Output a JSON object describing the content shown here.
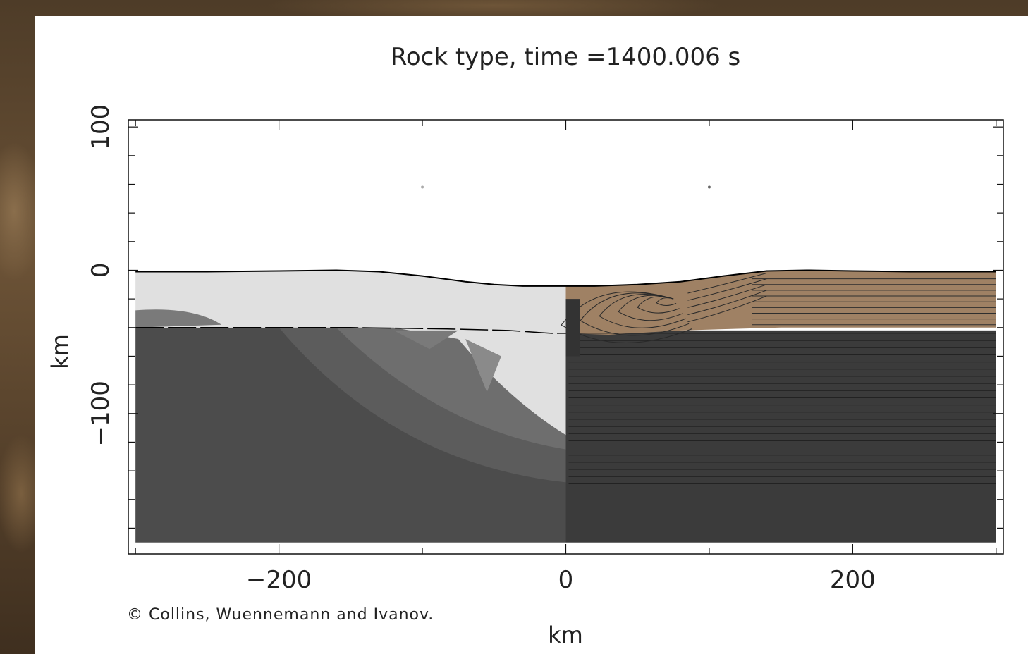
{
  "chart_data": {
    "type": "heatmap",
    "title": "Rock type, time =1400.006 s",
    "xlabel": "km",
    "ylabel": "km",
    "xlim": [
      -305,
      305
    ],
    "ylim": [
      -198,
      105
    ],
    "xticks": [
      -200,
      0,
      200
    ],
    "yticks": [
      100,
      0,
      -100
    ],
    "grid": false,
    "surface_profile": {
      "x": [
        -300,
        -250,
        -200,
        -160,
        -130,
        -100,
        -70,
        -50,
        -30,
        -10,
        0,
        20,
        50,
        80,
        110,
        140,
        170,
        200,
        240,
        300
      ],
      "y": [
        -1,
        -1,
        -0.5,
        0,
        -1,
        -4,
        -8,
        -10,
        -11,
        -11,
        -11,
        -11,
        -10,
        -8,
        -4,
        -0.5,
        0,
        -0.5,
        -1,
        -1
      ]
    },
    "crust_mantle_boundary": {
      "x": [
        -300,
        -150,
        -80,
        -40,
        -10,
        0,
        30,
        80,
        150,
        300
      ],
      "y": [
        -40,
        -40,
        -41,
        -42,
        -44,
        -44,
        -45,
        -42,
        -40,
        -40
      ]
    },
    "colors": {
      "crust_left": "#e0e0e0",
      "mantle_left": "#4c4c4c",
      "transition_left": "#6e6e6e",
      "crust_right": "#9f8164",
      "mantle_right": "#3b3b3b",
      "air": "#ffffff"
    }
  },
  "credit": "© Collins, Wuennemann and Ivanov."
}
